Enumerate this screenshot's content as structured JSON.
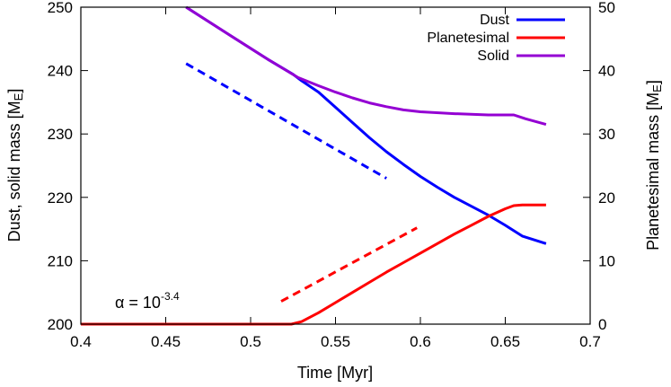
{
  "chart_data": {
    "type": "line",
    "xlabel": "Time [Myr]",
    "ylabel_left": "Dust, solid mass [M",
    "ylabel_left_unit": "E",
    "ylabel_left_end": "]",
    "ylabel_right": "Planetesimal mass [M",
    "ylabel_right_unit": "E",
    "ylabel_right_end": "]",
    "xlim": [
      0.4,
      0.7
    ],
    "ylim_left": [
      200,
      250
    ],
    "ylim_right": [
      0,
      50
    ],
    "xticks": [
      "0.4",
      "0.45",
      "0.5",
      "0.55",
      "0.6",
      "0.65",
      "0.7"
    ],
    "xtick_values": [
      0.4,
      0.45,
      0.5,
      0.55,
      0.6,
      0.65,
      0.7
    ],
    "yticks_left": [
      "200",
      "210",
      "220",
      "230",
      "240",
      "250"
    ],
    "ytick_values_left": [
      200,
      210,
      220,
      230,
      240,
      250
    ],
    "yticks_right": [
      "0",
      "10",
      "20",
      "30",
      "40",
      "50"
    ],
    "ytick_values_right": [
      0,
      10,
      20,
      30,
      40,
      50
    ],
    "legend_position": "top-right",
    "annotation": {
      "prefix": "α = 10",
      "exponent": "-3.4"
    },
    "series": [
      {
        "name": "Dust",
        "axis": "left",
        "color": "#0000ff",
        "style": "solid",
        "legend": true,
        "x": [
          0.462,
          0.49,
          0.51,
          0.525,
          0.53,
          0.54,
          0.55,
          0.56,
          0.57,
          0.58,
          0.59,
          0.6,
          0.61,
          0.62,
          0.63,
          0.64,
          0.65,
          0.66,
          0.674
        ],
        "y": [
          250,
          245.2,
          241.8,
          239.4,
          238.4,
          236.6,
          234.2,
          231.8,
          229.4,
          227.2,
          225.2,
          223.3,
          221.6,
          220.0,
          218.6,
          217.2,
          215.6,
          213.9,
          212.7
        ]
      },
      {
        "name": "Planetesimal",
        "axis": "right",
        "color": "#ff0000",
        "style": "solid",
        "legend": true,
        "x": [
          0.4,
          0.524,
          0.53,
          0.54,
          0.55,
          0.56,
          0.57,
          0.58,
          0.59,
          0.6,
          0.61,
          0.62,
          0.63,
          0.64,
          0.65,
          0.655,
          0.66,
          0.674
        ],
        "y": [
          0,
          0,
          0.4,
          1.8,
          3.4,
          5.0,
          6.6,
          8.2,
          9.7,
          11.2,
          12.7,
          14.2,
          15.6,
          17.0,
          18.2,
          18.7,
          18.8,
          18.8
        ]
      },
      {
        "name": "Solid",
        "axis": "left",
        "color": "#9400d3",
        "style": "solid",
        "legend": true,
        "x": [
          0.462,
          0.49,
          0.51,
          0.528,
          0.54,
          0.55,
          0.56,
          0.57,
          0.58,
          0.59,
          0.6,
          0.62,
          0.64,
          0.655,
          0.662,
          0.674
        ],
        "y": [
          250,
          245.2,
          241.8,
          238.9,
          237.6,
          236.6,
          235.7,
          234.9,
          234.3,
          233.8,
          233.5,
          233.2,
          233.0,
          233.0,
          232.4,
          231.5
        ]
      },
      {
        "name": "",
        "axis": "left",
        "color": "#0000ff",
        "style": "dashed",
        "legend": false,
        "x": [
          0.462,
          0.58
        ],
        "y": [
          241.1,
          223.0
        ]
      },
      {
        "name": "",
        "axis": "right",
        "color": "#ff0000",
        "style": "dashed",
        "legend": false,
        "x": [
          0.518,
          0.598
        ],
        "y": [
          3.6,
          15.2
        ]
      }
    ]
  }
}
